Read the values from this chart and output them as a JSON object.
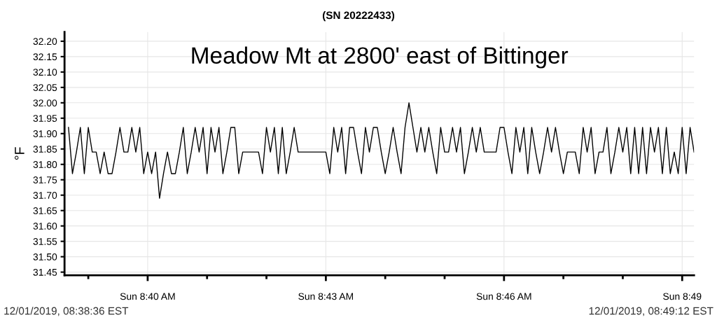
{
  "chart_data": {
    "type": "line",
    "title": "Meadow Mt at 2800' east of Bittinger",
    "subtitle": "(SN 20222433)",
    "ylabel": "°F",
    "annotations": [
      "12/01/2019, 08:38:36 EST",
      "12/01/2019, 08:49:12 EST"
    ],
    "x": [
      "2019-12-01T08:38:40",
      "2019-12-01T08:38:44",
      "2019-12-01T08:38:48",
      "2019-12-01T08:38:52",
      "2019-12-01T08:38:56",
      "2019-12-01T08:39:00",
      "2019-12-01T08:39:04",
      "2019-12-01T08:39:08",
      "2019-12-01T08:39:12",
      "2019-12-01T08:39:16",
      "2019-12-01T08:39:20",
      "2019-12-01T08:39:24",
      "2019-12-01T08:39:28",
      "2019-12-01T08:39:32",
      "2019-12-01T08:39:36",
      "2019-12-01T08:39:40",
      "2019-12-01T08:39:44",
      "2019-12-01T08:39:48",
      "2019-12-01T08:39:52",
      "2019-12-01T08:39:56",
      "2019-12-01T08:40:00",
      "2019-12-01T08:40:04",
      "2019-12-01T08:40:08",
      "2019-12-01T08:40:12",
      "2019-12-01T08:40:16",
      "2019-12-01T08:40:20",
      "2019-12-01T08:40:24",
      "2019-12-01T08:40:28",
      "2019-12-01T08:40:32",
      "2019-12-01T08:40:36",
      "2019-12-01T08:40:40",
      "2019-12-01T08:40:44",
      "2019-12-01T08:40:48",
      "2019-12-01T08:40:52",
      "2019-12-01T08:40:56",
      "2019-12-01T08:41:00",
      "2019-12-01T08:41:04",
      "2019-12-01T08:41:08",
      "2019-12-01T08:41:12",
      "2019-12-01T08:41:16",
      "2019-12-01T08:41:20",
      "2019-12-01T08:41:24",
      "2019-12-01T08:41:28",
      "2019-12-01T08:41:32",
      "2019-12-01T08:41:36",
      "2019-12-01T08:41:40",
      "2019-12-01T08:41:44",
      "2019-12-01T08:41:48",
      "2019-12-01T08:41:52",
      "2019-12-01T08:41:56",
      "2019-12-01T08:42:00",
      "2019-12-01T08:42:04",
      "2019-12-01T08:42:08",
      "2019-12-01T08:42:12",
      "2019-12-01T08:42:16",
      "2019-12-01T08:42:20",
      "2019-12-01T08:42:24",
      "2019-12-01T08:42:28",
      "2019-12-01T08:42:32",
      "2019-12-01T08:42:36",
      "2019-12-01T08:42:40",
      "2019-12-01T08:42:44",
      "2019-12-01T08:42:48",
      "2019-12-01T08:42:52",
      "2019-12-01T08:42:56",
      "2019-12-01T08:43:00",
      "2019-12-01T08:43:04",
      "2019-12-01T08:43:08",
      "2019-12-01T08:43:12",
      "2019-12-01T08:43:16",
      "2019-12-01T08:43:20",
      "2019-12-01T08:43:24",
      "2019-12-01T08:43:28",
      "2019-12-01T08:43:32",
      "2019-12-01T08:43:36",
      "2019-12-01T08:43:40",
      "2019-12-01T08:43:44",
      "2019-12-01T08:43:48",
      "2019-12-01T08:43:52",
      "2019-12-01T08:43:56",
      "2019-12-01T08:44:00",
      "2019-12-01T08:44:04",
      "2019-12-01T08:44:08",
      "2019-12-01T08:44:12",
      "2019-12-01T08:44:16",
      "2019-12-01T08:44:20",
      "2019-12-01T08:44:24",
      "2019-12-01T08:44:28",
      "2019-12-01T08:44:32",
      "2019-12-01T08:44:36",
      "2019-12-01T08:44:40",
      "2019-12-01T08:44:44",
      "2019-12-01T08:44:48",
      "2019-12-01T08:44:52",
      "2019-12-01T08:44:56",
      "2019-12-01T08:45:00",
      "2019-12-01T08:45:04",
      "2019-12-01T08:45:08",
      "2019-12-01T08:45:12",
      "2019-12-01T08:45:16",
      "2019-12-01T08:45:20",
      "2019-12-01T08:45:24",
      "2019-12-01T08:45:28",
      "2019-12-01T08:45:32",
      "2019-12-01T08:45:36",
      "2019-12-01T08:45:40",
      "2019-12-01T08:45:44",
      "2019-12-01T08:45:48",
      "2019-12-01T08:45:52",
      "2019-12-01T08:45:56",
      "2019-12-01T08:46:00",
      "2019-12-01T08:46:04",
      "2019-12-01T08:46:08",
      "2019-12-01T08:46:12",
      "2019-12-01T08:46:16",
      "2019-12-01T08:46:20",
      "2019-12-01T08:46:24",
      "2019-12-01T08:46:28",
      "2019-12-01T08:46:32",
      "2019-12-01T08:46:36",
      "2019-12-01T08:46:40",
      "2019-12-01T08:46:44",
      "2019-12-01T08:46:48",
      "2019-12-01T08:46:52",
      "2019-12-01T08:46:56",
      "2019-12-01T08:47:00",
      "2019-12-01T08:47:04",
      "2019-12-01T08:47:08",
      "2019-12-01T08:47:12",
      "2019-12-01T08:47:16",
      "2019-12-01T08:47:20",
      "2019-12-01T08:47:24",
      "2019-12-01T08:47:28",
      "2019-12-01T08:47:32",
      "2019-12-01T08:47:36",
      "2019-12-01T08:47:40",
      "2019-12-01T08:47:44",
      "2019-12-01T08:47:48",
      "2019-12-01T08:47:52",
      "2019-12-01T08:47:56",
      "2019-12-01T08:48:00",
      "2019-12-01T08:48:04",
      "2019-12-01T08:48:08",
      "2019-12-01T08:48:12",
      "2019-12-01T08:48:16",
      "2019-12-01T08:48:20",
      "2019-12-01T08:48:24",
      "2019-12-01T08:48:28",
      "2019-12-01T08:48:32",
      "2019-12-01T08:48:36",
      "2019-12-01T08:48:40",
      "2019-12-01T08:48:44",
      "2019-12-01T08:48:48",
      "2019-12-01T08:48:52",
      "2019-12-01T08:48:56",
      "2019-12-01T08:49:00",
      "2019-12-01T08:49:04",
      "2019-12-01T08:49:08",
      "2019-12-01T08:49:12"
    ],
    "series": [
      {
        "color": "#000000",
        "values": [
          31.92,
          31.77,
          31.84,
          31.92,
          31.77,
          31.92,
          31.84,
          31.84,
          31.77,
          31.84,
          31.77,
          31.77,
          31.84,
          31.92,
          31.84,
          31.84,
          31.92,
          31.84,
          31.92,
          31.77,
          31.84,
          31.77,
          31.84,
          31.69,
          31.77,
          31.84,
          31.77,
          31.77,
          31.84,
          31.92,
          31.77,
          31.84,
          31.92,
          31.84,
          31.92,
          31.77,
          31.92,
          31.84,
          31.92,
          31.77,
          31.84,
          31.92,
          31.92,
          31.77,
          31.84,
          31.84,
          31.84,
          31.84,
          31.84,
          31.77,
          31.92,
          31.84,
          31.92,
          31.77,
          31.92,
          31.77,
          31.84,
          31.92,
          31.84,
          31.84,
          31.84,
          31.84,
          31.84,
          31.84,
          31.84,
          31.84,
          31.77,
          31.92,
          31.84,
          31.92,
          31.77,
          31.92,
          31.92,
          31.84,
          31.77,
          31.92,
          31.84,
          31.92,
          31.92,
          31.84,
          31.77,
          31.84,
          31.92,
          31.84,
          31.77,
          31.92,
          32.0,
          31.92,
          31.84,
          31.92,
          31.84,
          31.92,
          31.84,
          31.77,
          31.92,
          31.84,
          31.84,
          31.92,
          31.84,
          31.92,
          31.77,
          31.84,
          31.92,
          31.84,
          31.92,
          31.84,
          31.84,
          31.84,
          31.84,
          31.92,
          31.92,
          31.84,
          31.77,
          31.92,
          31.84,
          31.92,
          31.77,
          31.92,
          31.84,
          31.77,
          31.84,
          31.92,
          31.84,
          31.92,
          31.84,
          31.77,
          31.84,
          31.84,
          31.84,
          31.77,
          31.92,
          31.84,
          31.92,
          31.77,
          31.84,
          31.84,
          31.92,
          31.77,
          31.84,
          31.92,
          31.84,
          31.92,
          31.77,
          31.92,
          31.77,
          31.92,
          31.77,
          31.92,
          31.84,
          31.92,
          31.77,
          31.92,
          31.77,
          31.84,
          31.77,
          31.92,
          31.77,
          31.92,
          31.84
        ]
      }
    ],
    "xlim": [
      "2019-12-01T08:38:36",
      "2019-12-01T08:49:12"
    ],
    "xticks": [
      {
        "value": "2019-12-01T08:39",
        "label": null
      },
      {
        "value": "2019-12-01T08:40",
        "label": "Sun 8:40 AM"
      },
      {
        "value": "2019-12-01T08:41",
        "label": null
      },
      {
        "value": "2019-12-01T08:42",
        "label": null
      },
      {
        "value": "2019-12-01T08:43",
        "label": "Sun 8:43 AM"
      },
      {
        "value": "2019-12-01T08:44",
        "label": null
      },
      {
        "value": "2019-12-01T08:45",
        "label": null
      },
      {
        "value": "2019-12-01T08:46",
        "label": "Sun 8:46 AM"
      },
      {
        "value": "2019-12-01T08:47",
        "label": null
      },
      {
        "value": "2019-12-01T08:48",
        "label": null
      },
      {
        "value": "2019-12-01T08:49",
        "label": "Sun 8:49"
      }
    ],
    "ylim": [
      31.44,
      32.23
    ],
    "yticks": [
      31.45,
      {
        "value": 31.5,
        "label": "31.50"
      },
      31.55,
      {
        "value": 31.6,
        "label": "31.60"
      },
      31.65,
      {
        "value": 31.7,
        "label": "31.70"
      },
      31.75,
      {
        "value": 31.8,
        "label": "31.80"
      },
      31.85,
      {
        "value": 31.9,
        "label": "31.90"
      },
      31.95,
      {
        "value": 32.0,
        "label": "32.00"
      },
      32.05,
      {
        "value": 32.1,
        "label": "32.10"
      },
      32.15,
      {
        "value": 32.2,
        "label": "32.20"
      }
    ],
    "grid": true,
    "marker": "none",
    "line_style": "solid",
    "legend": false
  }
}
